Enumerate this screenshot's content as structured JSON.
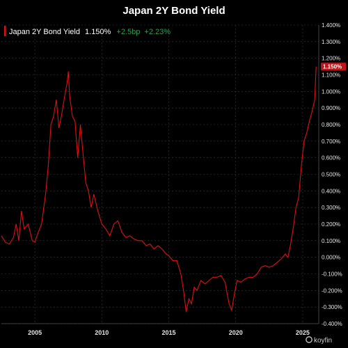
{
  "title": "Japan 2Y Bond Yield",
  "legend": {
    "name": "Japan 2Y Bond Yield",
    "last": "1.150%",
    "change_bp": "+2.5bp",
    "change_pct": "+2.23%"
  },
  "badge": "1.150%",
  "watermark": "koyfin",
  "colors": {
    "line": "#e01010",
    "up": "#2e9e4f",
    "badge": "#c0141a",
    "grid": "#3a3a3a"
  },
  "chart_data": {
    "type": "line",
    "title": "Japan 2Y Bond Yield",
    "xlabel": "",
    "ylabel": "",
    "xlim": [
      2002.5,
      2026.2
    ],
    "ylim": [
      -0.4,
      1.4
    ],
    "grid": true,
    "legend_position": "top-left",
    "x_ticks": [
      "2005",
      "2010",
      "2015",
      "2020",
      "2025"
    ],
    "y_ticks": [
      "1.400%",
      "1.300%",
      "1.200%",
      "1.100%",
      "1.000%",
      "0.900%",
      "0.800%",
      "0.700%",
      "0.600%",
      "0.500%",
      "0.400%",
      "0.300%",
      "0.200%",
      "0.100%",
      "0.000%",
      "-0.100%",
      "-0.200%",
      "-0.300%",
      "-0.400%"
    ],
    "series": [
      {
        "name": "Japan 2Y Bond Yield",
        "x": [
          2002.5,
          2002.8,
          2003.1,
          2003.4,
          2003.6,
          2003.8,
          2004.0,
          2004.2,
          2004.5,
          2004.8,
          2005.0,
          2005.2,
          2005.5,
          2005.8,
          2006.0,
          2006.2,
          2006.4,
          2006.6,
          2006.8,
          2007.0,
          2007.2,
          2007.4,
          2007.5,
          2007.6,
          2007.8,
          2008.0,
          2008.2,
          2008.4,
          2008.6,
          2008.8,
          2009.0,
          2009.2,
          2009.4,
          2009.7,
          2010.0,
          2010.3,
          2010.6,
          2010.9,
          2011.2,
          2011.5,
          2011.8,
          2012.1,
          2012.4,
          2012.7,
          2013.0,
          2013.3,
          2013.6,
          2013.9,
          2014.2,
          2014.5,
          2014.8,
          2015.0,
          2015.3,
          2015.6,
          2015.9,
          2016.1,
          2016.3,
          2016.5,
          2016.7,
          2016.9,
          2017.1,
          2017.4,
          2017.7,
          2018.0,
          2018.3,
          2018.6,
          2018.9,
          2019.2,
          2019.5,
          2019.7,
          2019.9,
          2020.1,
          2020.4,
          2020.7,
          2021.0,
          2021.3,
          2021.6,
          2021.9,
          2022.2,
          2022.5,
          2022.8,
          2023.1,
          2023.4,
          2023.7,
          2023.9,
          2024.1,
          2024.3,
          2024.5,
          2024.7,
          2024.9,
          2025.1,
          2025.3,
          2025.5,
          2025.7,
          2025.9,
          2026.0
        ],
        "values": [
          0.13,
          0.09,
          0.08,
          0.12,
          0.2,
          0.1,
          0.28,
          0.17,
          0.2,
          0.1,
          0.09,
          0.14,
          0.2,
          0.38,
          0.55,
          0.8,
          0.85,
          0.95,
          0.78,
          0.86,
          0.96,
          1.05,
          1.12,
          0.97,
          0.85,
          0.82,
          0.6,
          0.8,
          0.62,
          0.45,
          0.4,
          0.3,
          0.38,
          0.28,
          0.2,
          0.17,
          0.13,
          0.2,
          0.22,
          0.15,
          0.12,
          0.13,
          0.11,
          0.1,
          0.1,
          0.07,
          0.08,
          0.05,
          0.07,
          0.05,
          0.02,
          0.01,
          -0.02,
          -0.02,
          -0.1,
          -0.2,
          -0.33,
          -0.25,
          -0.28,
          -0.18,
          -0.2,
          -0.14,
          -0.16,
          -0.14,
          -0.12,
          -0.12,
          -0.11,
          -0.15,
          -0.28,
          -0.32,
          -0.22,
          -0.14,
          -0.15,
          -0.13,
          -0.12,
          -0.12,
          -0.1,
          -0.06,
          -0.05,
          -0.06,
          -0.05,
          -0.03,
          -0.01,
          0.02,
          0.0,
          0.08,
          0.18,
          0.3,
          0.36,
          0.55,
          0.7,
          0.75,
          0.82,
          0.88,
          0.95,
          1.15
        ]
      }
    ]
  }
}
